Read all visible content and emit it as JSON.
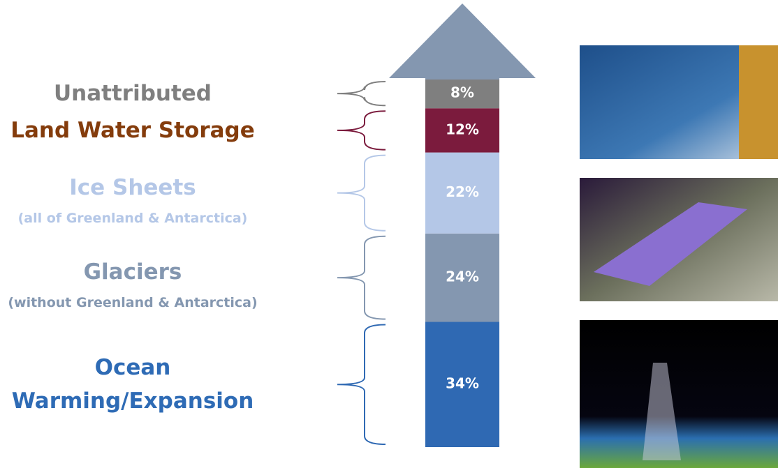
{
  "chart_data": {
    "type": "stacked-bar",
    "categories": [
      "Ocean Warming/Expansion",
      "Glaciers",
      "Ice Sheets",
      "Land Water Storage",
      "Unattributed"
    ],
    "sublabels": [
      null,
      "(without Greenland & Antarctica)",
      "(all of Greenland & Antarctica)",
      null,
      null
    ],
    "values": [
      34,
      24,
      22,
      12,
      8
    ],
    "value_labels": [
      "34%",
      "24%",
      "22%",
      "12%",
      "8%"
    ],
    "colors": [
      "#2f69b3",
      "#8497b0",
      "#b4c7e7",
      "#7b1b3d",
      "#7f7f7f"
    ],
    "label_colors": [
      "#2e6bb5",
      "#8497b0",
      "#b4c7e7",
      "#843c0c",
      "#7f7f7f"
    ]
  }
}
